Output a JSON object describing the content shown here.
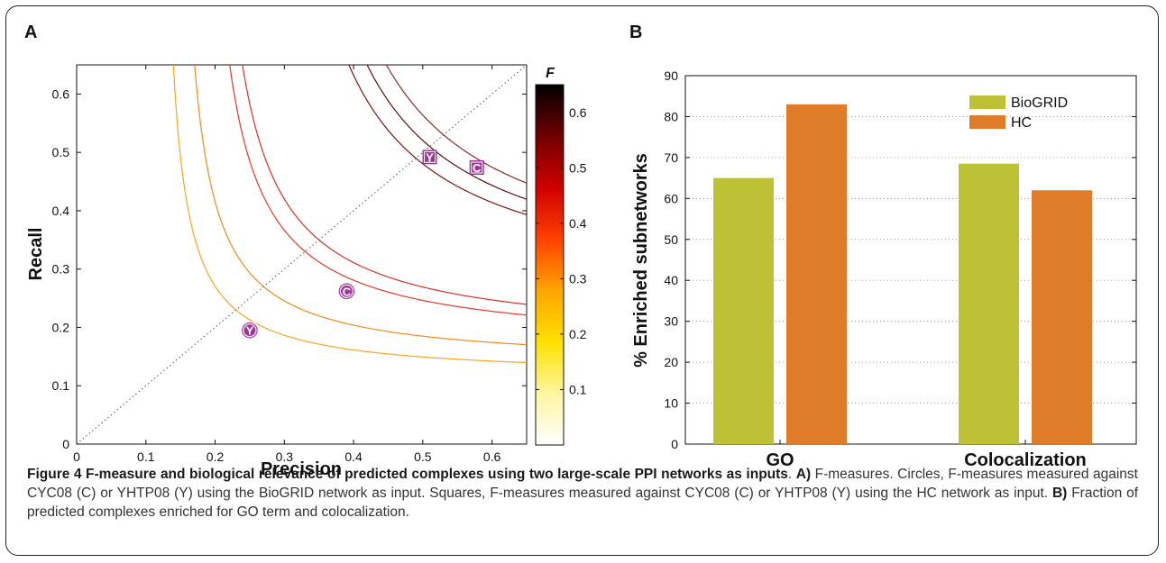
{
  "figure": {
    "caption_title": "Figure 4 F-measure and biological relevance of predicted complexes using two large-scale PPI networks as inputs",
    "caption_a_label": "A)",
    "caption_a_text": " F-measures. Circles, F-measures measured against CYC08 (C) or YHTP08 (Y) using the BioGRID network as input. Squares, F-measures measured against CYC08 (C) or YHTP08 (Y) using the HC network as input. ",
    "caption_b_label": "B)",
    "caption_b_text": " Fraction of predicted complexes enriched for GO term and colocalization."
  },
  "chart_data": [
    {
      "panel": "A",
      "type": "scatter",
      "xlabel": "Precision",
      "ylabel": "Recall",
      "xlim": [
        0,
        0.65
      ],
      "ylim": [
        0,
        0.65
      ],
      "xticks": [
        0,
        0.1,
        0.2,
        0.3,
        0.4,
        0.5,
        0.6
      ],
      "yticks": [
        0,
        0.1,
        0.2,
        0.3,
        0.4,
        0.5,
        0.6
      ],
      "diagonal": true,
      "f_contours": [
        {
          "f": 0.23,
          "color": "#f5a623"
        },
        {
          "f": 0.27,
          "color": "#f08a1e"
        },
        {
          "f": 0.33,
          "color": "#e23a2a"
        },
        {
          "f": 0.35,
          "color": "#d6302a"
        },
        {
          "f": 0.49,
          "color": "#7a1414"
        },
        {
          "f": 0.51,
          "color": "#5a0f0f"
        },
        {
          "f": 0.53,
          "color": "#8a2a2a"
        }
      ],
      "points": [
        {
          "label": "Y",
          "marker": "circle",
          "x": 0.25,
          "y": 0.195,
          "color": "#a0339a"
        },
        {
          "label": "C",
          "marker": "circle",
          "x": 0.39,
          "y": 0.262,
          "color": "#a0339a"
        },
        {
          "label": "Y",
          "marker": "square",
          "x": 0.51,
          "y": 0.492,
          "color": "#a0339a"
        },
        {
          "label": "C",
          "marker": "square",
          "x": 0.578,
          "y": 0.474,
          "color": "#a0339a"
        }
      ],
      "colorbar": {
        "title": "F",
        "range": [
          0,
          0.65
        ],
        "ticks": [
          0.1,
          0.2,
          0.3,
          0.4,
          0.5,
          0.6
        ],
        "stops": [
          "#ffffff",
          "#fff6a0",
          "#ffe000",
          "#ffa500",
          "#ff4000",
          "#d00000",
          "#700000",
          "#000000"
        ]
      }
    },
    {
      "panel": "B",
      "type": "bar",
      "ylabel": "% Enriched subnetworks",
      "ylim": [
        0,
        90
      ],
      "yticks": [
        0,
        10,
        20,
        30,
        40,
        50,
        60,
        70,
        80,
        90
      ],
      "categories": [
        "GO",
        "Colocalization"
      ],
      "series": [
        {
          "name": "BioGRID",
          "color": "#bcc135",
          "values": [
            65,
            68.5
          ]
        },
        {
          "name": "HC",
          "color": "#df7c2a",
          "values": [
            83,
            62
          ]
        }
      ],
      "legend": "top-right",
      "grid": "dotted-horizontal"
    }
  ]
}
